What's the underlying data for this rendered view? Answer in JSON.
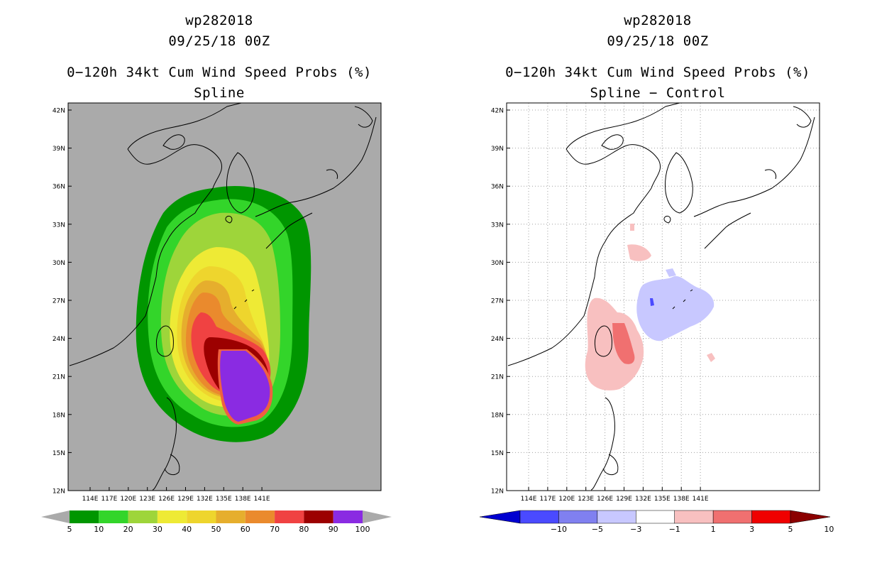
{
  "left_panel": {
    "storm_id": "wp282018",
    "datetime": "09/25/18 00Z",
    "title": "0−120h 34kt Cum Wind Speed Probs (%)",
    "subtitle": "Spline",
    "lat_labels": [
      "42N",
      "39N",
      "36N",
      "33N",
      "30N",
      "27N",
      "24N",
      "21N",
      "18N",
      "15N",
      "12N"
    ],
    "lon_labels": [
      "114E",
      "117E",
      "120E",
      "123E",
      "126E",
      "129E",
      "132E",
      "135E",
      "138E",
      "141E"
    ],
    "colorbar_labels": [
      "5",
      "10",
      "20",
      "30",
      "40",
      "50",
      "60",
      "70",
      "80",
      "90",
      "100"
    ],
    "colorbar_colors": [
      "#009600",
      "#33d52a",
      "#9ed53a",
      "#eeea35",
      "#eed52d",
      "#e6ae2d",
      "#ea8a2d",
      "#f04242",
      "#9c0000",
      "#8a2be2"
    ],
    "background": "#aaaaaa"
  },
  "right_panel": {
    "storm_id": "wp282018",
    "datetime": "09/25/18 00Z",
    "title": "0−120h 34kt Cum Wind Speed Probs (%)",
    "subtitle": "Spline − Control",
    "lat_labels": [
      "42N",
      "39N",
      "36N",
      "33N",
      "30N",
      "27N",
      "24N",
      "21N",
      "18N",
      "15N",
      "12N"
    ],
    "lon_labels": [
      "114E",
      "117E",
      "120E",
      "123E",
      "126E",
      "129E",
      "132E",
      "135E",
      "138E",
      "141E"
    ],
    "colorbar_labels": [
      "−10",
      "−5",
      "−3",
      "−1",
      "1",
      "3",
      "5",
      "10"
    ],
    "colorbar_colors": [
      "#0000d0",
      "#4a4aff",
      "#8080f0",
      "#c8c8ff",
      "#ffffff",
      "#f8c0c0",
      "#f07070",
      "#f00000",
      "#8b0000"
    ]
  },
  "colors": {
    "land_outline": "#000000",
    "grid": "#a0a0a0"
  }
}
